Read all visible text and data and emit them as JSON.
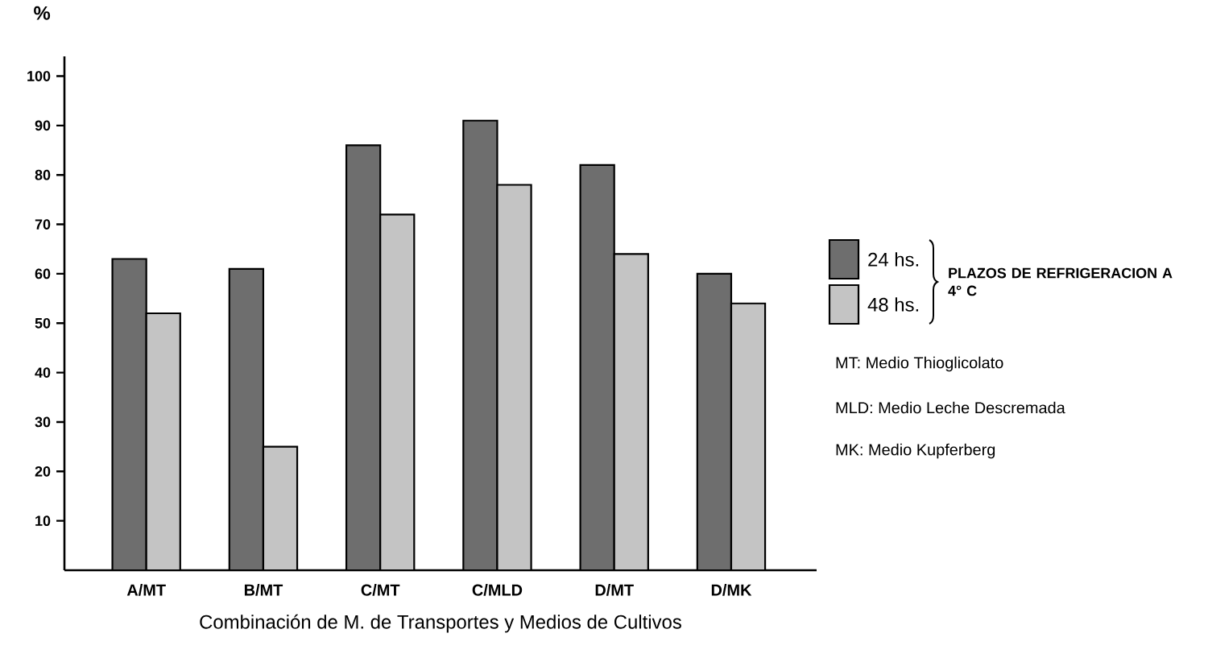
{
  "chart_data": {
    "type": "bar",
    "xlabel": "Combinación de M. de Transportes y Medios de Cultivos",
    "ylabel": "%",
    "legend_title": "PLAZOS DE REFRIGERACION A 4° C",
    "categories": [
      "A/MT",
      "B/MT",
      "C/MT",
      "C/MLD",
      "D/MT",
      "D/MK"
    ],
    "series": [
      {
        "name": "24 hs.",
        "color": "#6e6e6e",
        "values": [
          63,
          61,
          86,
          91,
          82,
          60
        ]
      },
      {
        "name": "48 hs.",
        "color": "#c4c4c4",
        "values": [
          52,
          25,
          72,
          78,
          64,
          54
        ]
      }
    ],
    "ylim": [
      0,
      104
    ],
    "yticks": [
      10,
      20,
      30,
      40,
      50,
      60,
      70,
      80,
      90,
      100
    ],
    "grid": false,
    "legend": "right",
    "annotations": [
      "MT: Medio Thioglicolato",
      "MLD: Medio Leche Descremada",
      "MK: Medio Kupferberg"
    ]
  }
}
